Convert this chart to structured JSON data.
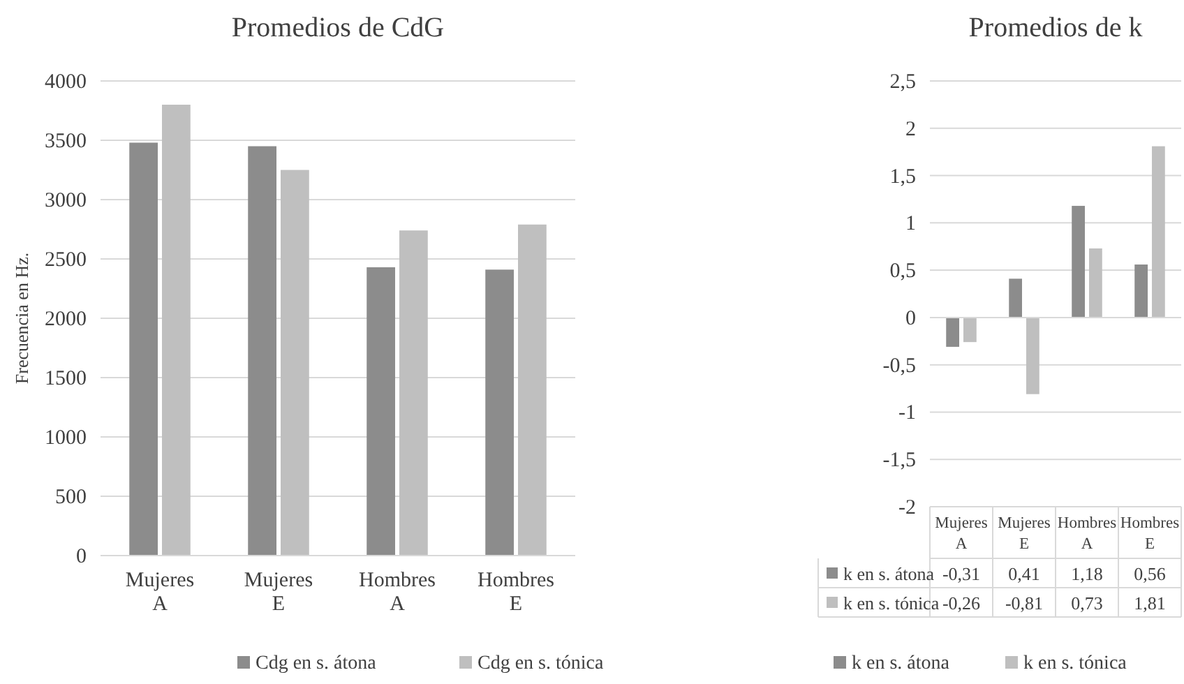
{
  "chart_data": [
    {
      "type": "bar",
      "title": "Promedios de CdG",
      "ylabel": "Frecuencia en Hz.",
      "categories": [
        "Mujeres A",
        "Mujeres E",
        "Hombres A",
        "Hombres E"
      ],
      "series": [
        {
          "name": "Cdg en s. átona",
          "color": "#8c8c8c",
          "values": [
            3480,
            3450,
            2430,
            2410
          ]
        },
        {
          "name": "Cdg en s. tónica",
          "color": "#bfbfbf",
          "values": [
            3800,
            3250,
            2740,
            2790
          ]
        }
      ],
      "ylim": [
        0,
        4000
      ],
      "yticks": [
        0,
        500,
        1000,
        1500,
        2000,
        2500,
        3000,
        3500,
        4000
      ],
      "grid": "y",
      "legend": "bottom"
    },
    {
      "type": "bar",
      "title": "Promedios de k",
      "categories": [
        "Mujeres A",
        "Mujeres E",
        "Hombres A",
        "Hombres E"
      ],
      "series": [
        {
          "name": "k en s. átona",
          "color": "#8c8c8c",
          "values": [
            -0.31,
            0.41,
            1.18,
            0.56
          ],
          "value_labels": [
            "-0,31",
            "0,41",
            "1,18",
            "0,56"
          ]
        },
        {
          "name": "k en s. tónica",
          "color": "#bfbfbf",
          "values": [
            -0.26,
            -0.81,
            0.73,
            1.81
          ],
          "value_labels": [
            "-0,26",
            "-0,81",
            "0,73",
            "1,81"
          ]
        }
      ],
      "ylim": [
        -2,
        2.5
      ],
      "yticks": [
        {
          "value": -2,
          "label": "-2"
        },
        {
          "value": -1.5,
          "label": "-1,5"
        },
        {
          "value": -1,
          "label": "-1"
        },
        {
          "value": -0.5,
          "label": "-0,5"
        },
        {
          "value": 0,
          "label": "0"
        },
        {
          "value": 0.5,
          "label": "0,5"
        },
        {
          "value": 1,
          "label": "1"
        },
        {
          "value": 1.5,
          "label": "1,5"
        },
        {
          "value": 2,
          "label": "2"
        },
        {
          "value": 2.5,
          "label": "2,5"
        }
      ],
      "grid": "y",
      "legend": "bottom"
    }
  ]
}
